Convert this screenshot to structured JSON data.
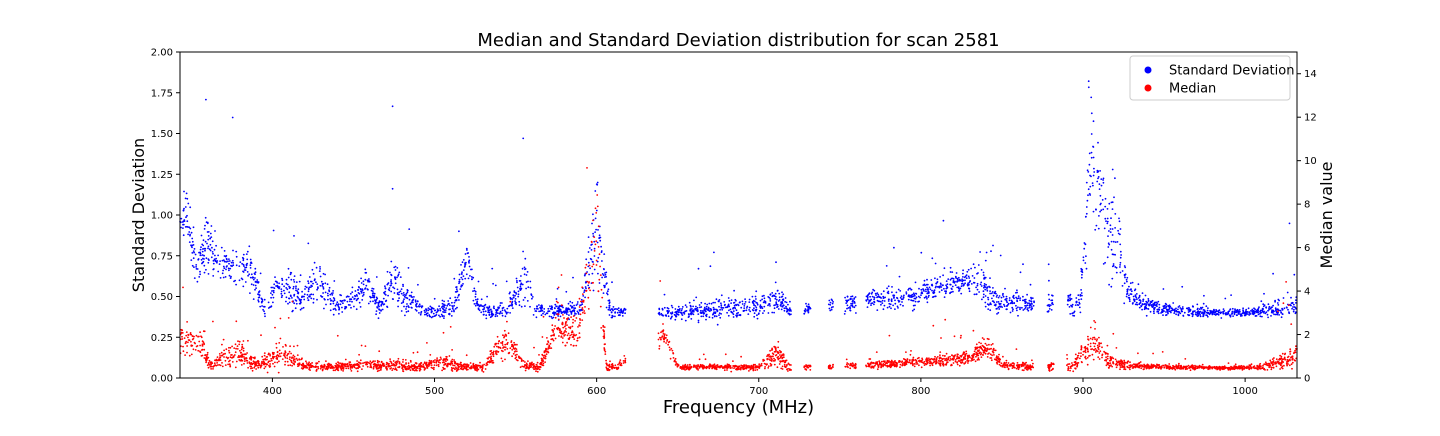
{
  "chart_data": {
    "type": "scatter",
    "title": "Median and Standard Deviation distribution for scan 2581",
    "xlabel": "Frequency (MHz)",
    "ylabel": "Standard Deviation",
    "y2label": "Median value",
    "xlim": [
      343,
      1032
    ],
    "ylim": [
      0,
      2.0
    ],
    "y2lim": [
      0,
      15
    ],
    "x_ticks": [
      400,
      500,
      600,
      700,
      800,
      900,
      1000
    ],
    "y_ticks": [
      0.0,
      0.25,
      0.5,
      0.75,
      1.0,
      1.25,
      1.5,
      1.75,
      2.0
    ],
    "y_tick_labels": [
      "0.00",
      "0.25",
      "0.50",
      "0.75",
      "1.00",
      "1.25",
      "1.50",
      "1.75",
      "2.00"
    ],
    "y2_ticks": [
      0,
      2,
      4,
      6,
      8,
      10,
      12,
      14
    ],
    "grid": false,
    "legend_position": "top-right",
    "legend": [
      {
        "label": "Standard Deviation",
        "color": "#0000ff"
      },
      {
        "label": "Median",
        "color": "#ff0000"
      }
    ],
    "series": [
      {
        "name": "Standard Deviation",
        "axis": "left",
        "color": "#0000ff",
        "profile": [
          [
            343,
            0.92,
            0.12
          ],
          [
            348,
            1.0,
            0.12
          ],
          [
            353,
            0.65,
            0.08
          ],
          [
            360,
            0.85,
            0.15
          ],
          [
            366,
            0.72,
            0.08
          ],
          [
            380,
            0.66,
            0.1
          ],
          [
            385,
            0.7,
            0.1
          ],
          [
            395,
            0.44,
            0.05
          ],
          [
            404,
            0.58,
            0.08
          ],
          [
            410,
            0.55,
            0.12
          ],
          [
            418,
            0.48,
            0.06
          ],
          [
            428,
            0.6,
            0.1
          ],
          [
            440,
            0.44,
            0.05
          ],
          [
            452,
            0.48,
            0.06
          ],
          [
            458,
            0.6,
            0.08
          ],
          [
            466,
            0.42,
            0.05
          ],
          [
            474,
            0.6,
            0.12
          ],
          [
            480,
            0.5,
            0.1
          ],
          [
            486,
            0.47,
            0.05
          ],
          [
            495,
            0.4,
            0.02
          ],
          [
            505,
            0.42,
            0.04
          ],
          [
            512,
            0.44,
            0.05
          ],
          [
            520,
            0.75,
            0.1
          ],
          [
            527,
            0.42,
            0.04
          ],
          [
            535,
            0.41,
            0.03
          ],
          [
            545,
            0.42,
            0.04
          ],
          [
            556,
            0.6,
            0.15
          ],
          [
            562,
            0.42,
            0.04
          ],
          [
            570,
            0.41,
            0.03
          ],
          [
            590,
            0.42,
            0.04
          ],
          [
            600,
            0.95,
            0.25
          ],
          [
            608,
            0.42,
            0.04
          ],
          [
            614,
            0.4,
            0.02
          ],
          [
            645,
            0.4,
            0.03
          ],
          [
            670,
            0.42,
            0.05
          ],
          [
            690,
            0.44,
            0.06
          ],
          [
            705,
            0.46,
            0.06
          ],
          [
            712,
            0.48,
            0.08
          ],
          [
            718,
            0.42,
            0.04
          ],
          [
            730,
            0.42,
            0.03
          ],
          [
            770,
            0.48,
            0.05
          ],
          [
            785,
            0.48,
            0.06
          ],
          [
            800,
            0.52,
            0.05
          ],
          [
            815,
            0.56,
            0.05
          ],
          [
            828,
            0.6,
            0.05
          ],
          [
            836,
            0.6,
            0.12
          ],
          [
            845,
            0.48,
            0.07
          ],
          [
            860,
            0.46,
            0.06
          ],
          [
            868,
            0.44,
            0.05
          ],
          [
            892,
            0.46,
            0.06
          ],
          [
            898,
            0.45,
            0.06
          ],
          [
            905,
            1.35,
            0.3
          ],
          [
            912,
            1.05,
            0.25
          ],
          [
            920,
            0.85,
            0.25
          ],
          [
            928,
            0.52,
            0.06
          ],
          [
            940,
            0.44,
            0.04
          ],
          [
            960,
            0.41,
            0.03
          ],
          [
            980,
            0.4,
            0.02
          ],
          [
            1000,
            0.4,
            0.02
          ],
          [
            1015,
            0.41,
            0.03
          ],
          [
            1025,
            0.43,
            0.05
          ],
          [
            1032,
            0.44,
            0.05
          ]
        ],
        "gaps": [
          [
            618,
            638
          ],
          [
            720,
            728
          ],
          [
            732,
            743
          ],
          [
            746,
            753
          ],
          [
            760,
            766
          ],
          [
            870,
            878
          ],
          [
            882,
            890
          ]
        ],
        "points": 3200
      },
      {
        "name": "Median",
        "axis": "right",
        "color": "#ff0000",
        "profile": [
          [
            343,
            1.8,
            0.4
          ],
          [
            350,
            1.6,
            0.5
          ],
          [
            356,
            1.6,
            0.6
          ],
          [
            362,
            0.6,
            0.2
          ],
          [
            380,
            1.2,
            0.5
          ],
          [
            390,
            0.6,
            0.2
          ],
          [
            400,
            0.8,
            0.4
          ],
          [
            405,
            1.2,
            0.6
          ],
          [
            420,
            0.55,
            0.15
          ],
          [
            440,
            0.5,
            0.12
          ],
          [
            456,
            0.6,
            0.2
          ],
          [
            470,
            0.55,
            0.15
          ],
          [
            480,
            0.6,
            0.2
          ],
          [
            490,
            0.5,
            0.15
          ],
          [
            505,
            0.7,
            0.3
          ],
          [
            515,
            0.55,
            0.2
          ],
          [
            530,
            0.5,
            0.15
          ],
          [
            545,
            1.8,
            0.6
          ],
          [
            555,
            0.6,
            0.2
          ],
          [
            565,
            0.5,
            0.15
          ],
          [
            575,
            2.4,
            0.8
          ],
          [
            588,
            2.0,
            0.6
          ],
          [
            600,
            6.5,
            2.0
          ],
          [
            606,
            0.5,
            0.2
          ],
          [
            612,
            0.5,
            0.15
          ],
          [
            642,
            2.0,
            0.4
          ],
          [
            650,
            0.5,
            0.1
          ],
          [
            680,
            0.5,
            0.1
          ],
          [
            700,
            0.5,
            0.12
          ],
          [
            712,
            1.2,
            0.5
          ],
          [
            718,
            0.5,
            0.15
          ],
          [
            730,
            0.5,
            0.1
          ],
          [
            770,
            0.6,
            0.12
          ],
          [
            790,
            0.7,
            0.15
          ],
          [
            810,
            0.8,
            0.2
          ],
          [
            830,
            0.95,
            0.25
          ],
          [
            842,
            1.4,
            0.4
          ],
          [
            850,
            0.6,
            0.15
          ],
          [
            868,
            0.5,
            0.12
          ],
          [
            895,
            0.6,
            0.2
          ],
          [
            900,
            1.2,
            0.5
          ],
          [
            908,
            1.7,
            0.6
          ],
          [
            915,
            0.8,
            0.3
          ],
          [
            930,
            0.55,
            0.12
          ],
          [
            960,
            0.5,
            0.08
          ],
          [
            990,
            0.45,
            0.06
          ],
          [
            1010,
            0.5,
            0.1
          ],
          [
            1025,
            0.8,
            0.3
          ],
          [
            1032,
            1.1,
            0.4
          ]
        ],
        "gaps": [
          [
            618,
            638
          ],
          [
            720,
            728
          ],
          [
            732,
            743
          ],
          [
            746,
            753
          ],
          [
            760,
            766
          ],
          [
            870,
            878
          ],
          [
            882,
            890
          ]
        ],
        "points": 3600
      }
    ]
  }
}
